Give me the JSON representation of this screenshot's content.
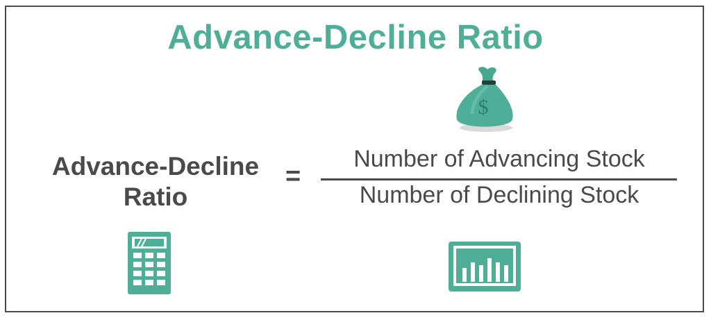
{
  "title": "Advance-Decline Ratio",
  "formula": {
    "lhs_line1": "Advance-Decline",
    "lhs_line2": "Ratio",
    "operator": "=",
    "numerator": "Number of Advancing Stock",
    "denominator": "Number of Declining Stock"
  },
  "icons": {
    "money_bag": "money-bag-icon",
    "money_symbol": "$",
    "calculator": "calculator-icon",
    "bar_chart": "bar-chart-icon"
  },
  "colors": {
    "accent": "#4fae98",
    "text": "#4a4a4a",
    "icon_dark": "#2f8f7a",
    "border": "#4a4a4a"
  }
}
